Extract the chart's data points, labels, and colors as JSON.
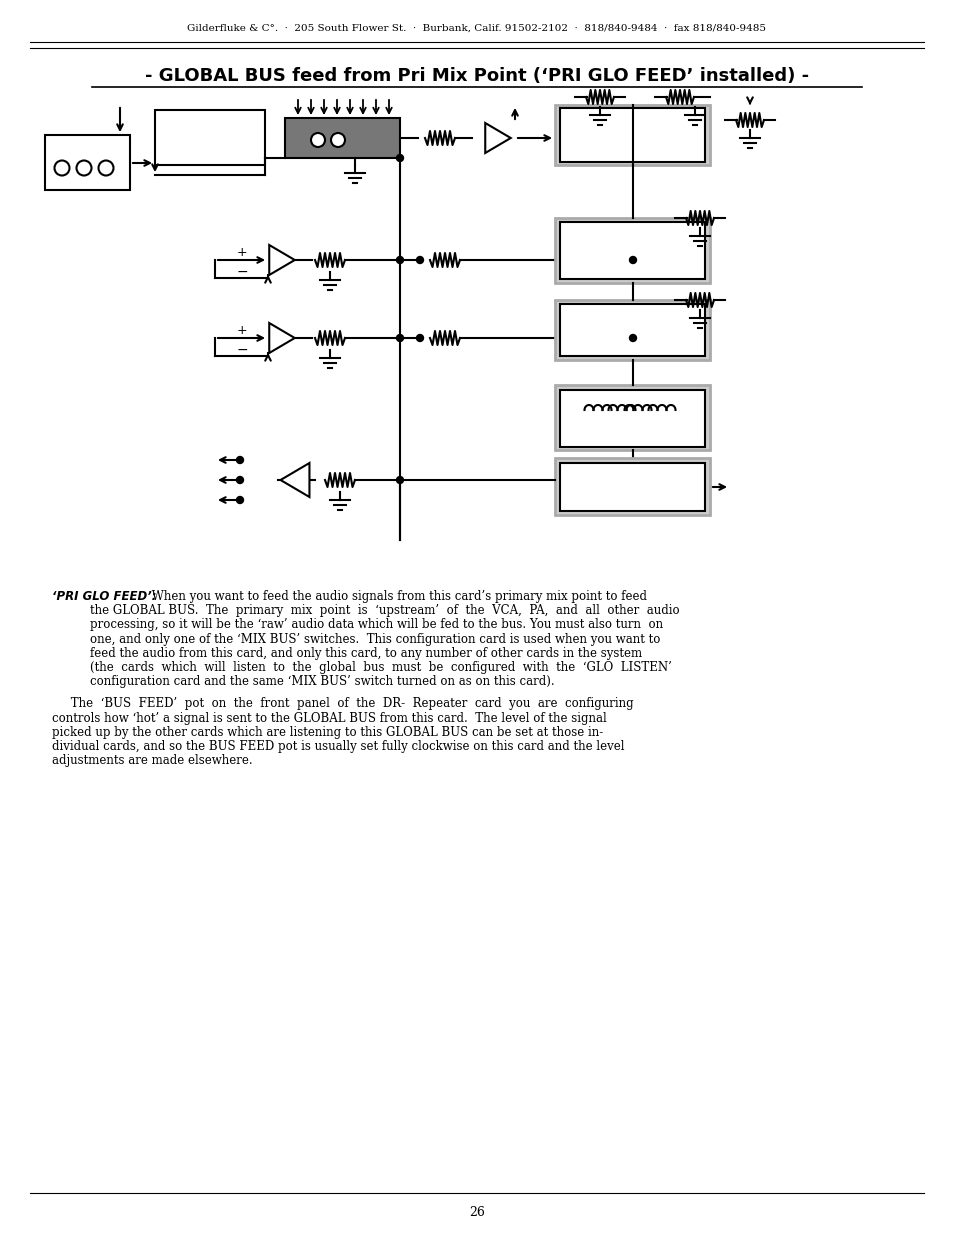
{
  "header_text": "Gilderfluke & C°.  ·  205 South Flower St.  ·  Burbank, Calif. 91502-2102  ·  818/840-9484  ·  fax 818/840-9485",
  "title": "- GLOBAL BUS feed from Pri Mix Point (‘PRI GLO FEED’ installed) -",
  "page_number": "26",
  "body_label": "‘PRI GLO FEED’:",
  "body_line0": " When you want to feed the audio signals from this card’s primary mix point to feed",
  "body_lines1": [
    "the GLOBAL BUS.  The  primary  mix  point  is  ‘upstream’  of  the  VCA,  PA,  and  all  other  audio",
    "processing, so it will be the ‘raw’ audio data which will be fed to the bus. You must also turn  on",
    "one, and only one of the ‘MIX BUS’ switches.  This configuration card is used when you want to",
    "feed the audio from this card, and only this card, to any number of other cards in the system",
    "(the  cards  which  will  listen  to  the  global  bus  must  be  configured  with  the  ‘GLO  LISTEN’",
    "configuration card and the same ‘MIX BUS’ switch turned on as on this card)."
  ],
  "body_lines2": [
    "     The  ‘BUS  FEED’  pot  on  the  front  panel  of  the  DR-  Repeater  card  you  are  configuring",
    "controls how ‘hot’ a signal is sent to the GLOBAL BUS from this card.  The level of the signal",
    "picked up by the other cards which are listening to this GLOBAL BUS can be set at those in-",
    "dividual cards, and so the BUS FEED pot is usually set fully clockwise on this card and the level",
    "adjustments are made elsewhere."
  ],
  "bg_color": "#ffffff",
  "text_color": "#000000",
  "header_fontsize": 7.5,
  "title_fontsize": 13,
  "body_fontsize": 8.5
}
